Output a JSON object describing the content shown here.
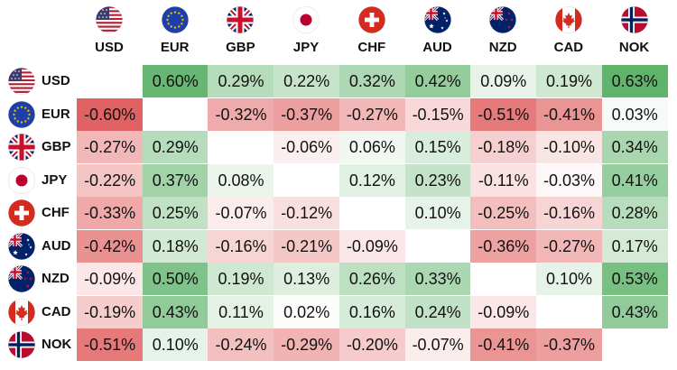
{
  "currencies": [
    {
      "code": "USD",
      "flag_icon": "usa-flag-icon"
    },
    {
      "code": "EUR",
      "flag_icon": "eu-flag-icon"
    },
    {
      "code": "GBP",
      "flag_icon": "uk-flag-icon"
    },
    {
      "code": "JPY",
      "flag_icon": "japan-flag-icon"
    },
    {
      "code": "CHF",
      "flag_icon": "switzerland-flag-icon"
    },
    {
      "code": "AUD",
      "flag_icon": "australia-flag-icon"
    },
    {
      "code": "NZD",
      "flag_icon": "new-zealand-flag-icon"
    },
    {
      "code": "CAD",
      "flag_icon": "canada-flag-icon"
    },
    {
      "code": "NOK",
      "flag_icon": "norway-flag-icon"
    }
  ],
  "matrix": [
    [
      "",
      "0.60%",
      "0.29%",
      "0.22%",
      "0.32%",
      "0.42%",
      "0.09%",
      "0.19%",
      "0.63%"
    ],
    [
      "-0.60%",
      "",
      "-0.32%",
      "-0.37%",
      "-0.27%",
      "-0.15%",
      "-0.51%",
      "-0.41%",
      "0.03%"
    ],
    [
      "-0.27%",
      "0.29%",
      "",
      "-0.06%",
      "0.06%",
      "0.15%",
      "-0.18%",
      "-0.10%",
      "0.34%"
    ],
    [
      "-0.22%",
      "0.37%",
      "0.08%",
      "",
      "0.12%",
      "0.23%",
      "-0.11%",
      "-0.03%",
      "0.41%"
    ],
    [
      "-0.33%",
      "0.25%",
      "-0.07%",
      "-0.12%",
      "",
      "0.10%",
      "-0.25%",
      "-0.16%",
      "0.28%"
    ],
    [
      "-0.42%",
      "0.18%",
      "-0.16%",
      "-0.21%",
      "-0.09%",
      "",
      "-0.36%",
      "-0.27%",
      "0.17%"
    ],
    [
      "-0.09%",
      "0.50%",
      "0.19%",
      "0.13%",
      "0.26%",
      "0.33%",
      "",
      "0.10%",
      "0.53%"
    ],
    [
      "-0.19%",
      "0.43%",
      "0.11%",
      "0.02%",
      "0.16%",
      "0.24%",
      "-0.09%",
      "",
      "0.43%"
    ],
    [
      "-0.51%",
      "0.10%",
      "-0.24%",
      "-0.29%",
      "-0.20%",
      "-0.07%",
      "-0.41%",
      "-0.37%",
      ""
    ]
  ],
  "colors": {
    "positive": "#5fb36b",
    "negative": "#e05a5a"
  }
}
